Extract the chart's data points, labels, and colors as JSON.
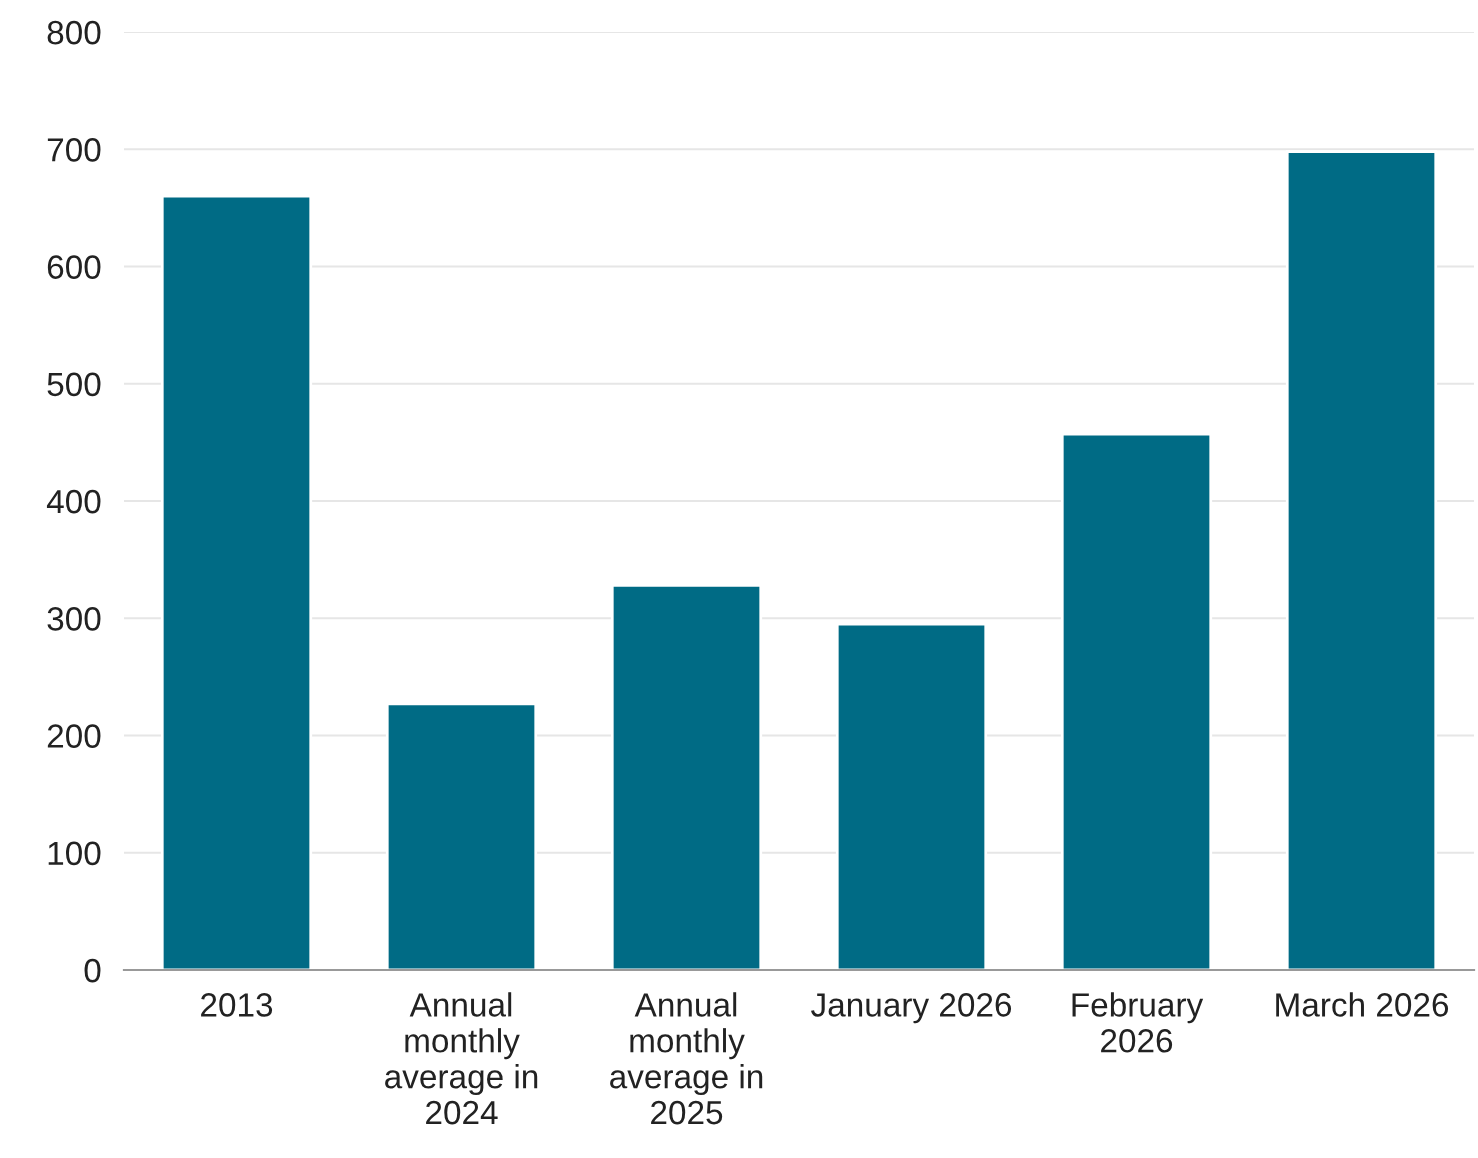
{
  "chart_data": {
    "type": "bar",
    "categories": [
      "2013",
      "Annual\nmonthly\naverage in\n2024",
      "Annual\nmonthly\naverage in\n2025",
      "January 2026",
      "February\n2026",
      "March 2026"
    ],
    "values": [
      660,
      227,
      328,
      295,
      457,
      698
    ],
    "color": "#006b85",
    "ylim": [
      0,
      800
    ],
    "yticks": [
      0,
      100,
      200,
      300,
      400,
      500,
      600,
      700,
      800
    ],
    "grid": "y",
    "legend": false
  }
}
